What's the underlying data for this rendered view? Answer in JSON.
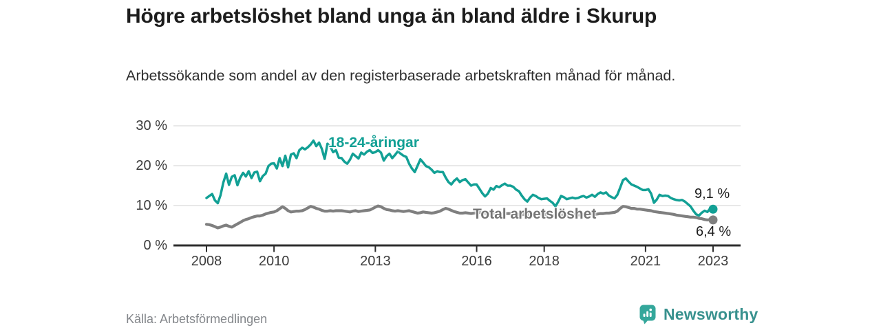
{
  "header": {
    "title": "Högre arbetslöshet bland unga än bland äldre i Skurup",
    "subtitle": "Arbetssökande som andel av den registerbaserade arbetskraften månad för månad."
  },
  "footer": {
    "source": "Källa: Arbetsförmedlingen",
    "logo_text": "Newsworthy"
  },
  "colors": {
    "young_line": "#12a095",
    "total_line": "#7f7f7f",
    "grid": "#e1e1e1",
    "axis": "#2e2e2e",
    "tick_text": "#3c3c3c",
    "logo_icon": "#34a79b",
    "logo_text": "#38918e"
  },
  "chart_data": {
    "type": "line",
    "title": "Högre arbetslöshet bland unga än bland äldre i Skurup",
    "xlabel": "",
    "ylabel": "%",
    "ylim": [
      0,
      30
    ],
    "grid": "horizontal",
    "legend_position": "inline-labels",
    "x_unit": "month",
    "x_range": [
      "2008-01",
      "2023-01"
    ],
    "x_ticks": [
      {
        "year": 2008,
        "label": "2008"
      },
      {
        "year": 2010,
        "label": "2010"
      },
      {
        "year": 2013,
        "label": "2013"
      },
      {
        "year": 2016,
        "label": "2016"
      },
      {
        "year": 2018,
        "label": "2018"
      },
      {
        "year": 2021,
        "label": "2021"
      },
      {
        "year": 2023,
        "label": "2023"
      }
    ],
    "y_ticks": [
      {
        "value": 0,
        "label": "0 %"
      },
      {
        "value": 10,
        "label": "10 %"
      },
      {
        "value": 20,
        "label": "20 %"
      },
      {
        "value": 30,
        "label": "30 %"
      }
    ],
    "series": [
      {
        "name": "18-24-åringar",
        "color": "#12a095",
        "end_label": "9,1 %",
        "end_value": 9.1,
        "values": [
          11.9,
          12.4,
          12.9,
          11.3,
          10.6,
          12.6,
          15.8,
          18.0,
          15.2,
          17.2,
          17.6,
          15.1,
          17.0,
          18.2,
          17.3,
          18.6,
          16.9,
          18.3,
          18.5,
          16.1,
          17.4,
          18.0,
          19.9,
          20.5,
          20.6,
          19.3,
          21.9,
          19.9,
          22.5,
          19.6,
          22.8,
          23.1,
          21.9,
          23.9,
          24.5,
          24.1,
          24.6,
          25.3,
          26.3,
          24.9,
          25.8,
          24.2,
          21.7,
          25.5,
          24.8,
          23.4,
          23.9,
          22.0,
          21.9,
          21.0,
          20.5,
          21.5,
          23.0,
          22.4,
          21.8,
          23.3,
          22.8,
          23.5,
          23.9,
          23.2,
          23.4,
          23.9,
          23.3,
          21.3,
          22.4,
          23.0,
          21.9,
          22.7,
          23.6,
          23.0,
          22.5,
          22.2,
          20.5,
          19.3,
          18.4,
          20.0,
          21.6,
          20.8,
          19.9,
          19.6,
          19.0,
          18.2,
          18.6,
          18.4,
          18.4,
          17.0,
          15.9,
          15.3,
          16.2,
          16.8,
          15.9,
          16.4,
          16.6,
          15.8,
          15.0,
          15.3,
          15.3,
          14.2,
          13.1,
          12.3,
          13.0,
          14.4,
          14.0,
          14.9,
          14.6,
          15.1,
          15.5,
          15.0,
          15.0,
          14.7,
          14.0,
          13.6,
          12.5,
          11.6,
          11.0,
          12.0,
          12.7,
          12.4,
          11.9,
          11.6,
          11.7,
          11.8,
          11.2,
          10.7,
          9.8,
          11.0,
          12.4,
          12.1,
          11.6,
          11.8,
          12.0,
          11.8,
          11.9,
          12.2,
          12.4,
          12.0,
          12.3,
          12.7,
          12.2,
          12.9,
          13.3,
          13.0,
          13.3,
          12.5,
          12.1,
          11.8,
          12.7,
          14.5,
          16.4,
          16.8,
          16.0,
          15.3,
          15.0,
          14.7,
          14.3,
          13.9,
          13.9,
          14.1,
          13.0,
          10.7,
          11.5,
          12.7,
          12.4,
          12.5,
          12.4,
          11.9,
          11.6,
          11.4,
          11.3,
          11.4,
          11.0,
          10.4,
          9.8,
          8.7,
          7.8,
          7.5,
          8.2,
          8.7,
          8.4,
          9.3,
          9.1
        ]
      },
      {
        "name": "Total arbetslöshet",
        "color": "#7f7f7f",
        "end_label": "6,4 %",
        "end_value": 6.4,
        "values": [
          5.3,
          5.2,
          5.0,
          4.7,
          4.4,
          4.6,
          4.9,
          5.1,
          4.8,
          4.6,
          5.0,
          5.4,
          5.8,
          6.2,
          6.5,
          6.7,
          7.0,
          7.2,
          7.4,
          7.4,
          7.6,
          7.9,
          8.1,
          8.3,
          8.4,
          8.7,
          9.2,
          9.7,
          9.3,
          8.7,
          8.4,
          8.5,
          8.6,
          8.6,
          8.7,
          9.0,
          9.4,
          9.8,
          9.6,
          9.3,
          9.1,
          8.8,
          8.6,
          8.6,
          8.7,
          8.6,
          8.7,
          8.7,
          8.7,
          8.6,
          8.5,
          8.4,
          8.6,
          8.7,
          8.5,
          8.6,
          8.7,
          8.8,
          8.9,
          9.2,
          9.6,
          9.9,
          9.7,
          9.3,
          9.0,
          8.9,
          8.7,
          8.6,
          8.7,
          8.6,
          8.5,
          8.6,
          8.7,
          8.5,
          8.3,
          8.1,
          8.2,
          8.4,
          8.3,
          8.2,
          8.1,
          8.2,
          8.4,
          8.6,
          9.0,
          9.3,
          9.1,
          8.8,
          8.5,
          8.3,
          8.1,
          8.1,
          8.2,
          8.1,
          8.0,
          8.1,
          8.2,
          8.3,
          8.2,
          8.1,
          8.0,
          8.1,
          8.0,
          8.1,
          8.2,
          8.1,
          8.0,
          8.0,
          8.0,
          7.9,
          7.8,
          7.8,
          7.7,
          7.8,
          7.7,
          7.8,
          7.9,
          7.8,
          7.7,
          7.8,
          7.8,
          7.7,
          7.6,
          7.5,
          7.4,
          7.5,
          7.6,
          7.7,
          7.6,
          7.5,
          7.6,
          7.7,
          7.7,
          7.6,
          7.7,
          7.8,
          7.8,
          7.9,
          7.8,
          7.9,
          8.0,
          8.0,
          8.1,
          8.1,
          8.2,
          8.3,
          8.6,
          9.3,
          9.8,
          9.7,
          9.5,
          9.3,
          9.3,
          9.1,
          9.1,
          9.0,
          8.9,
          8.8,
          8.7,
          8.5,
          8.4,
          8.3,
          8.2,
          8.1,
          8.0,
          7.9,
          7.8,
          7.6,
          7.5,
          7.4,
          7.3,
          7.2,
          7.1,
          7.1,
          7.0,
          6.8,
          6.7,
          6.5,
          6.4,
          6.5,
          6.4
        ]
      }
    ]
  }
}
